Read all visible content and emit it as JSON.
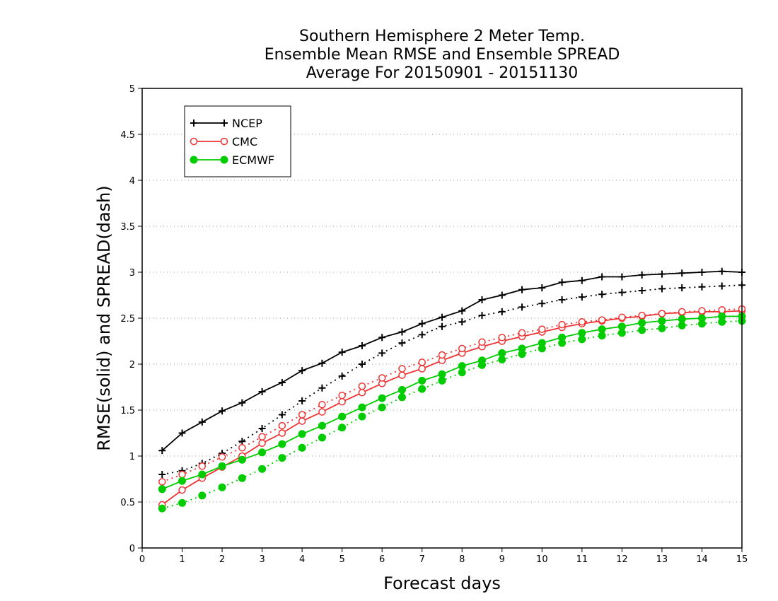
{
  "chart_data": {
    "type": "line",
    "title": [
      "Southern Hemisphere 2 Meter Temp.",
      "Ensemble Mean RMSE and Ensemble SPREAD",
      "Average For 20150901 - 20151130"
    ],
    "xlabel": "Forecast days",
    "ylabel": "RMSE(solid) and SPREAD(dash)",
    "xlim": [
      0,
      15
    ],
    "ylim": [
      0,
      5
    ],
    "xticks": [
      0,
      1,
      2,
      3,
      4,
      5,
      6,
      7,
      8,
      9,
      10,
      11,
      12,
      13,
      14,
      15
    ],
    "yticks": [
      0,
      0.5,
      1,
      1.5,
      2,
      2.5,
      3,
      3.5,
      4,
      4.5,
      5
    ],
    "grid": "horizontal dotted",
    "legend_position": "top-left",
    "x": [
      0.5,
      1,
      1.5,
      2,
      2.5,
      3,
      3.5,
      4,
      4.5,
      5,
      5.5,
      6,
      6.5,
      7,
      7.5,
      8,
      8.5,
      9,
      9.5,
      10,
      10.5,
      11,
      11.5,
      12,
      12.5,
      13,
      13.5,
      14,
      14.5,
      15
    ],
    "series": [
      {
        "name": "NCEP",
        "style": "solid",
        "color": "#000000",
        "marker": "plus",
        "values": [
          1.06,
          1.25,
          1.37,
          1.49,
          1.58,
          1.7,
          1.8,
          1.93,
          2.01,
          2.13,
          2.2,
          2.29,
          2.35,
          2.44,
          2.51,
          2.58,
          2.7,
          2.75,
          2.81,
          2.83,
          2.89,
          2.91,
          2.95,
          2.95,
          2.97,
          2.98,
          2.99,
          3.0,
          3.01,
          3.0
        ]
      },
      {
        "style": "dash",
        "color": "#000000",
        "marker": "plus",
        "values": [
          0.8,
          0.84,
          0.92,
          1.03,
          1.16,
          1.3,
          1.45,
          1.6,
          1.74,
          1.87,
          2.0,
          2.12,
          2.23,
          2.32,
          2.41,
          2.46,
          2.53,
          2.57,
          2.62,
          2.66,
          2.7,
          2.73,
          2.76,
          2.78,
          2.8,
          2.82,
          2.83,
          2.84,
          2.85,
          2.86
        ]
      },
      {
        "name": "CMC",
        "style": "solid",
        "color": "#ee3333",
        "marker": "open-circle",
        "values": [
          0.47,
          0.63,
          0.76,
          0.88,
          1.0,
          1.14,
          1.25,
          1.38,
          1.48,
          1.59,
          1.69,
          1.79,
          1.88,
          1.95,
          2.04,
          2.12,
          2.19,
          2.25,
          2.3,
          2.35,
          2.4,
          2.44,
          2.47,
          2.5,
          2.52,
          2.55,
          2.56,
          2.57,
          2.57,
          2.58
        ]
      },
      {
        "style": "dash",
        "color": "#ee3333",
        "marker": "open-circle",
        "values": [
          0.72,
          0.8,
          0.89,
          0.99,
          1.09,
          1.21,
          1.33,
          1.45,
          1.56,
          1.66,
          1.76,
          1.85,
          1.95,
          2.02,
          2.1,
          2.17,
          2.24,
          2.29,
          2.34,
          2.38,
          2.43,
          2.46,
          2.48,
          2.51,
          2.53,
          2.55,
          2.57,
          2.58,
          2.59,
          2.6
        ]
      },
      {
        "name": "ECMWF",
        "style": "solid",
        "color": "#00cc00",
        "marker": "filled-circle",
        "values": [
          0.64,
          0.73,
          0.8,
          0.89,
          0.96,
          1.04,
          1.13,
          1.24,
          1.33,
          1.43,
          1.53,
          1.63,
          1.72,
          1.82,
          1.89,
          1.98,
          2.04,
          2.12,
          2.17,
          2.23,
          2.29,
          2.34,
          2.38,
          2.41,
          2.45,
          2.47,
          2.49,
          2.5,
          2.52,
          2.52
        ]
      },
      {
        "style": "dash",
        "color": "#00cc00",
        "marker": "filled-circle",
        "values": [
          0.43,
          0.49,
          0.57,
          0.66,
          0.76,
          0.86,
          0.98,
          1.09,
          1.2,
          1.31,
          1.43,
          1.53,
          1.64,
          1.73,
          1.82,
          1.91,
          1.99,
          2.05,
          2.11,
          2.17,
          2.23,
          2.27,
          2.31,
          2.34,
          2.37,
          2.39,
          2.42,
          2.44,
          2.46,
          2.47
        ]
      }
    ]
  }
}
